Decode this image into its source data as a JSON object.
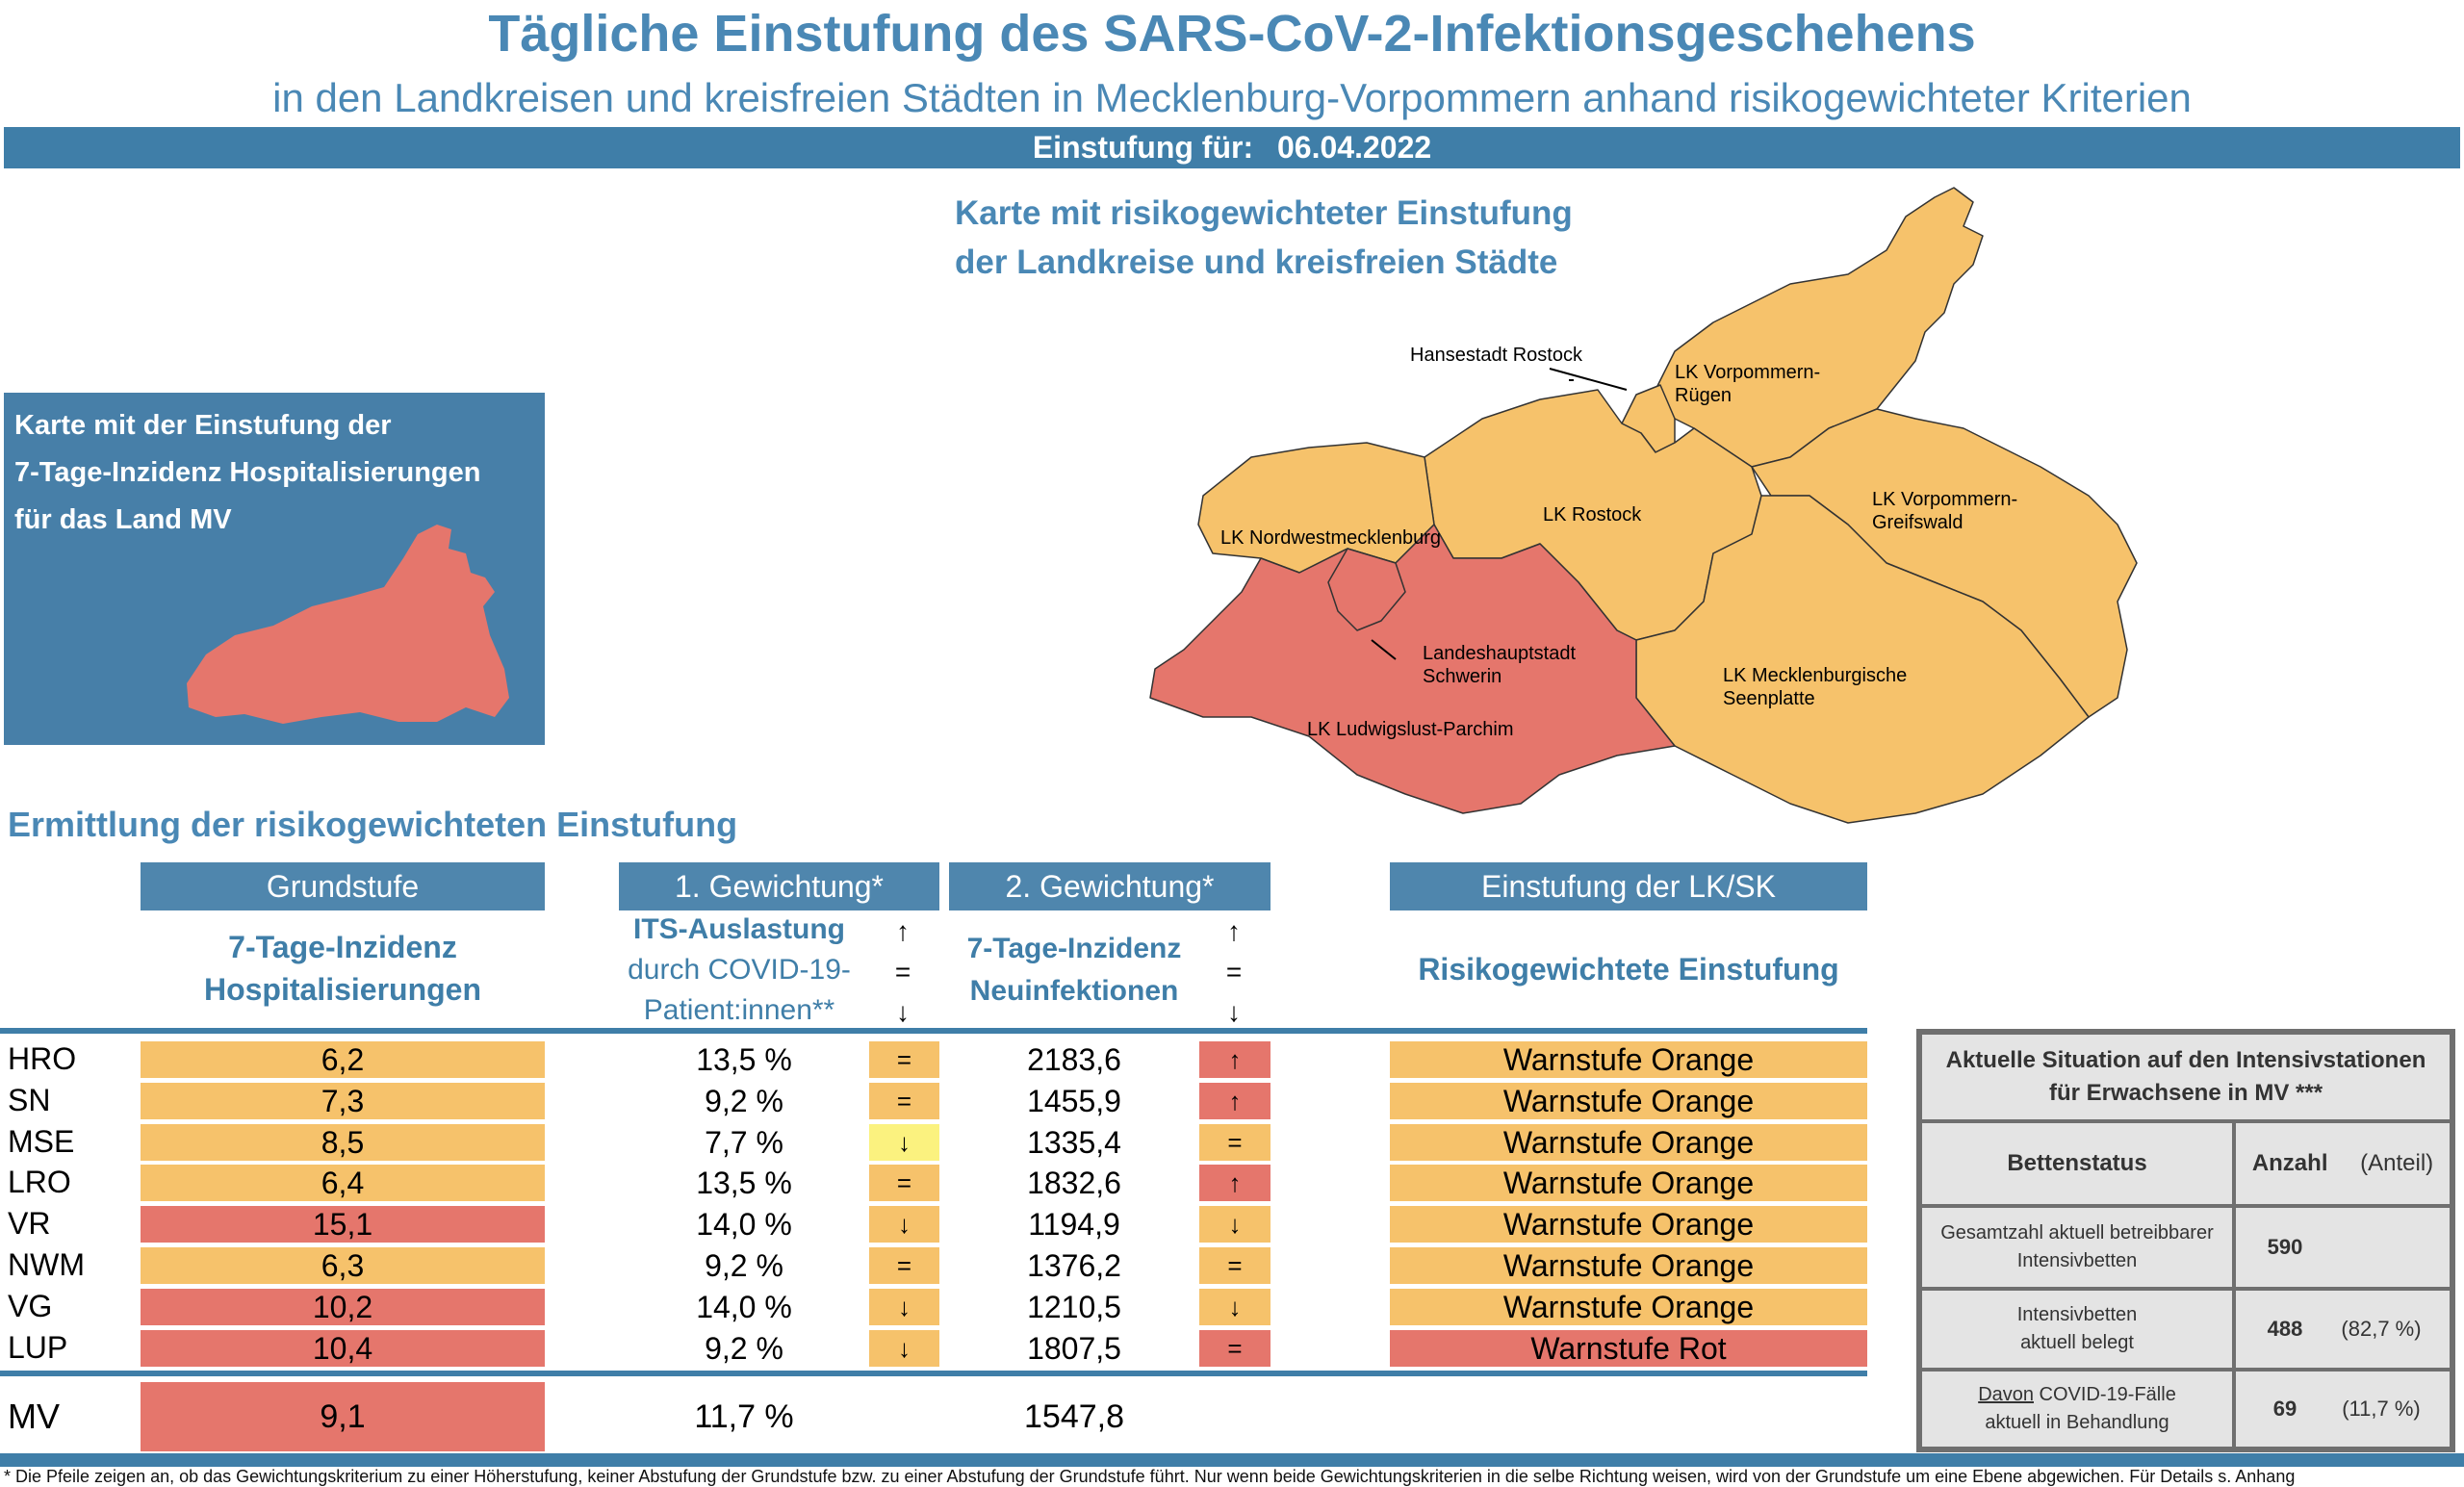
{
  "header": {
    "title": "Tägliche Einstufung des SARS-CoV-2-Infektionsgeschehens",
    "subtitle": "in den Landkreisen und kreisfreien Städten in Mecklenburg-Vorpommern anhand risikogewichteter Kriterien",
    "date_label": "Einstufung für:",
    "date_value": "06.04.2022"
  },
  "map": {
    "title_line1": "Karte mit risikogewichteter Einstufung",
    "title_line2": "der Landkreise und kreisfreien Städte",
    "labels": {
      "hro": "Hansestadt Rostock",
      "vr1": "LK Vorpommern-",
      "vr2": "Rügen",
      "nwm": "LK Nordwestmecklenburg",
      "lro": "LK Rostock",
      "vg1": "LK Vorpommern-",
      "vg2": "Greifswald",
      "sn1": "Landeshauptstadt",
      "sn2": "Schwerin",
      "mse1": "LK Mecklenburgische",
      "mse2": "Seenplatte",
      "lup": "LK Ludwigslust-Parchim"
    },
    "colors": {
      "orange": "#f6c26b",
      "red": "#e5766c"
    }
  },
  "hosp_map": {
    "line1": "Karte mit der Einstufung der",
    "line2": "7-Tage-Inzidenz Hospitalisierungen",
    "line3": "für das Land MV"
  },
  "table": {
    "section_title": "Ermittlung der risikogewichteten Einstufung",
    "headers": {
      "grundstufe": "Grundstufe",
      "gew1": "1. Gewichtung*",
      "gew2": "2. Gewichtung*",
      "einstufung": "Einstufung der LK/SK"
    },
    "sub": {
      "hosp1": "7-Tage-Inzidenz",
      "hosp2": "Hospitalisierungen",
      "its1": "ITS-Auslastung",
      "its2": "durch COVID-19-",
      "its3": "Patient:innen**",
      "neu1": "7-Tage-Inzidenz",
      "neu2": "Neuinfektionen",
      "risk": "Risikogewichtete Einstufung",
      "arrow_up": "↑",
      "arrow_eq": "=",
      "arrow_down": "↓"
    },
    "rows": [
      {
        "name": "HRO",
        "hosp": "6,2",
        "hosp_level": "orange",
        "its": "13,5 %",
        "its_trend": "=",
        "its_level": "orange",
        "inz": "2183,6",
        "inz_trend": "↑",
        "inz_level": "red",
        "stufe": "Warnstufe Orange",
        "stufe_level": "orange"
      },
      {
        "name": "SN",
        "hosp": "7,3",
        "hosp_level": "orange",
        "its": "9,2 %",
        "its_trend": "=",
        "its_level": "orange",
        "inz": "1455,9",
        "inz_trend": "↑",
        "inz_level": "red",
        "stufe": "Warnstufe Orange",
        "stufe_level": "orange"
      },
      {
        "name": "MSE",
        "hosp": "8,5",
        "hosp_level": "orange",
        "its": "7,7 %",
        "its_trend": "↓",
        "its_level": "yellow",
        "inz": "1335,4",
        "inz_trend": "=",
        "inz_level": "orange",
        "stufe": "Warnstufe Orange",
        "stufe_level": "orange"
      },
      {
        "name": "LRO",
        "hosp": "6,4",
        "hosp_level": "orange",
        "its": "13,5 %",
        "its_trend": "=",
        "its_level": "orange",
        "inz": "1832,6",
        "inz_trend": "↑",
        "inz_level": "red",
        "stufe": "Warnstufe Orange",
        "stufe_level": "orange"
      },
      {
        "name": "VR",
        "hosp": "15,1",
        "hosp_level": "red",
        "its": "14,0 %",
        "its_trend": "↓",
        "its_level": "orange",
        "inz": "1194,9",
        "inz_trend": "↓",
        "inz_level": "orange",
        "stufe": "Warnstufe Orange",
        "stufe_level": "orange"
      },
      {
        "name": "NWM",
        "hosp": "6,3",
        "hosp_level": "orange",
        "its": "9,2 %",
        "its_trend": "=",
        "its_level": "orange",
        "inz": "1376,2",
        "inz_trend": "=",
        "inz_level": "orange",
        "stufe": "Warnstufe Orange",
        "stufe_level": "orange"
      },
      {
        "name": "VG",
        "hosp": "10,2",
        "hosp_level": "red",
        "its": "14,0 %",
        "its_trend": "↓",
        "its_level": "orange",
        "inz": "1210,5",
        "inz_trend": "↓",
        "inz_level": "orange",
        "stufe": "Warnstufe Orange",
        "stufe_level": "orange"
      },
      {
        "name": "LUP",
        "hosp": "10,4",
        "hosp_level": "red",
        "its": "9,2 %",
        "its_trend": "↓",
        "its_level": "orange",
        "inz": "1807,5",
        "inz_trend": "=",
        "inz_level": "red",
        "stufe": "Warnstufe Rot",
        "stufe_level": "red"
      }
    ],
    "total": {
      "name": "MV",
      "hosp": "9,1",
      "hosp_level": "red",
      "its": "11,7 %",
      "inz": "1547,8"
    }
  },
  "icu": {
    "title": "Aktuelle Situation auf den Intensivstationen für Erwachsene in MV ***",
    "col_status": "Bettenstatus",
    "col_count": "Anzahl",
    "col_share": "(Anteil)",
    "rows": [
      {
        "label1": "Gesamtzahl aktuell betreibbarer",
        "label2": "Intensivbetten",
        "count": "590",
        "share": ""
      },
      {
        "label1": "Intensivbetten",
        "label2": "aktuell belegt",
        "count": "488",
        "share": "(82,7 %)"
      },
      {
        "label1_u": "Davon",
        "label1": " COVID-19-Fälle",
        "label2": "aktuell in Behandlung",
        "count": "69",
        "share": "(11,7 %)"
      }
    ]
  },
  "footnote": "* Die Pfeile zeigen an, ob das Gewichtungskriterium zu einer Höherstufung, keiner Abstufung der Grundstufe bzw. zu einer Abstufung der Grundstufe führt. Nur wenn beide Gewichtungskriterien in die selbe Richtung weisen, wird von der Grundstufe um eine Ebene abgewichen. Für Details s. Anhang"
}
